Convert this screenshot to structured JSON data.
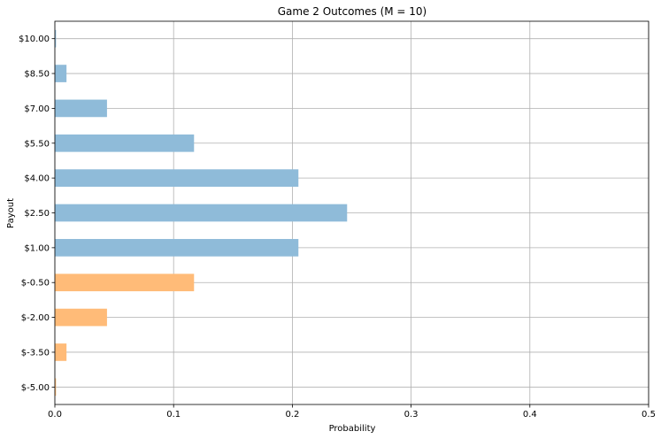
{
  "chart_data": {
    "type": "bar",
    "orientation": "horizontal",
    "title": "Game 2 Outcomes (M = 10)",
    "xlabel": "Probability",
    "ylabel": "Payout",
    "xlim": [
      0,
      0.5
    ],
    "x_ticks": [
      "0.0",
      "0.1",
      "0.2",
      "0.3",
      "0.4",
      "0.5"
    ],
    "x_tick_values": [
      0,
      0.1,
      0.2,
      0.3,
      0.4,
      0.5
    ],
    "grid": true,
    "categories": [
      "$-5.00",
      "$-3.50",
      "$-2.00",
      "$-0.50",
      "$1.00",
      "$2.50",
      "$4.00",
      "$5.50",
      "$7.00",
      "$8.50",
      "$10.00"
    ],
    "values": [
      0.001,
      0.0098,
      0.0439,
      0.1172,
      0.2051,
      0.2461,
      0.2051,
      0.1172,
      0.0439,
      0.0098,
      0.001
    ],
    "bar_colors": [
      "#ffbb78",
      "#ffbb78",
      "#ffbb78",
      "#ffbb78",
      "#8fbbd9",
      "#8fbbd9",
      "#8fbbd9",
      "#8fbbd9",
      "#8fbbd9",
      "#8fbbd9",
      "#8fbbd9"
    ],
    "colors": {
      "positive": "#8fbbd9",
      "negative": "#ffbb78",
      "grid": "#b0b0b0",
      "axis": "#000000"
    }
  }
}
